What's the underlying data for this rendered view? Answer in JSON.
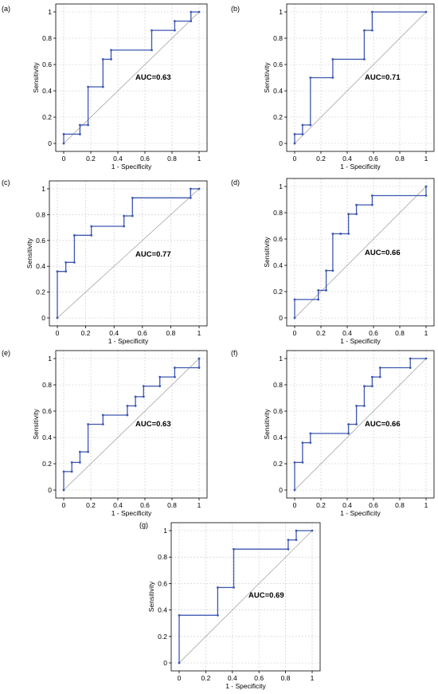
{
  "chart_data": [
    {
      "id": "a",
      "type": "line",
      "panel_label": "(a)",
      "xlabel": "1 - Specificity",
      "ylabel": "Sensitivity",
      "xlim": [
        0,
        1
      ],
      "ylim": [
        0,
        1
      ],
      "xticks": [
        "0",
        "0.2",
        "0.4",
        "0.6",
        "0.8",
        "1"
      ],
      "yticks": [
        "0",
        "0.2",
        "0.4",
        "0.6",
        "0.8",
        "1"
      ],
      "annotation": "AUC=0.63",
      "grid": true,
      "x": [
        0,
        0,
        0.12,
        0.12,
        0.18,
        0.18,
        0.29,
        0.29,
        0.35,
        0.35,
        0.65,
        0.65,
        0.82,
        0.82,
        0.94,
        0.94,
        1
      ],
      "y": [
        0,
        0.07,
        0.07,
        0.14,
        0.14,
        0.43,
        0.43,
        0.64,
        0.64,
        0.71,
        0.71,
        0.86,
        0.86,
        0.93,
        0.93,
        1,
        1
      ]
    },
    {
      "id": "b",
      "type": "line",
      "panel_label": "(b)",
      "xlabel": "1 - Specificity",
      "ylabel": "Sensitivity",
      "xlim": [
        0,
        1
      ],
      "ylim": [
        0,
        1
      ],
      "xticks": [
        "0",
        "0.2",
        "0.4",
        "0.6",
        "0.8",
        "1"
      ],
      "yticks": [
        "0",
        "0.2",
        "0.4",
        "0.6",
        "0.8",
        "1"
      ],
      "annotation": "AUC=0.71",
      "grid": true,
      "x": [
        0,
        0,
        0.06,
        0.06,
        0.12,
        0.12,
        0.29,
        0.29,
        0.53,
        0.53,
        0.59,
        0.59,
        1
      ],
      "y": [
        0,
        0.07,
        0.07,
        0.14,
        0.14,
        0.5,
        0.5,
        0.64,
        0.64,
        0.86,
        0.86,
        1,
        1
      ]
    },
    {
      "id": "c",
      "type": "line",
      "panel_label": "(c)",
      "xlabel": "1 - Specificity",
      "ylabel": "Sensitivity",
      "xlim": [
        0,
        1
      ],
      "ylim": [
        0,
        1
      ],
      "xticks": [
        "0",
        "0.2",
        "0.4",
        "0.6",
        "0.8",
        "1"
      ],
      "yticks": [
        "0",
        "0.2",
        "0.4",
        "0.6",
        "0.8",
        "1"
      ],
      "annotation": "AUC=0.77",
      "grid": true,
      "x": [
        0,
        0,
        0.06,
        0.06,
        0.12,
        0.12,
        0.24,
        0.24,
        0.47,
        0.47,
        0.53,
        0.53,
        0.94,
        0.94,
        1
      ],
      "y": [
        0,
        0.36,
        0.36,
        0.43,
        0.43,
        0.64,
        0.64,
        0.71,
        0.71,
        0.79,
        0.79,
        0.93,
        0.93,
        1,
        1
      ]
    },
    {
      "id": "d",
      "type": "line",
      "panel_label": "(d)",
      "xlabel": "1 - Specificity",
      "ylabel": "Sensitivity",
      "xlim": [
        0,
        1
      ],
      "ylim": [
        0,
        1
      ],
      "xticks": [
        "0",
        "0.2",
        "0.4",
        "0.6",
        "0.8",
        "1"
      ],
      "yticks": [
        "0",
        "0.2",
        "0.4",
        "0.6",
        "0.8",
        "1"
      ],
      "annotation": "AUC=0.66",
      "grid": true,
      "x": [
        0,
        0,
        0.18,
        0.18,
        0.24,
        0.24,
        0.29,
        0.29,
        0.35,
        0.35,
        0.41,
        0.41,
        0.47,
        0.47,
        0.59,
        0.59,
        1,
        1
      ],
      "y": [
        0,
        0.14,
        0.14,
        0.21,
        0.21,
        0.36,
        0.36,
        0.64,
        0.64,
        0.64,
        0.64,
        0.79,
        0.79,
        0.86,
        0.86,
        0.93,
        0.93,
        1
      ]
    },
    {
      "id": "e",
      "type": "line",
      "panel_label": "(e)",
      "xlabel": "1 - Specificity",
      "ylabel": "Sensitivity",
      "xlim": [
        0,
        1
      ],
      "ylim": [
        0,
        1
      ],
      "xticks": [
        "0",
        "0.2",
        "0.4",
        "0.6",
        "0.8",
        "1"
      ],
      "yticks": [
        "0",
        "0.2",
        "0.4",
        "0.6",
        "0.8",
        "1"
      ],
      "annotation": "AUC=0.63",
      "grid": true,
      "x": [
        0,
        0,
        0.06,
        0.06,
        0.12,
        0.12,
        0.18,
        0.18,
        0.29,
        0.29,
        0.47,
        0.47,
        0.53,
        0.53,
        0.59,
        0.59,
        0.71,
        0.71,
        0.82,
        0.82,
        1,
        1
      ],
      "y": [
        0,
        0.14,
        0.14,
        0.21,
        0.21,
        0.29,
        0.29,
        0.5,
        0.5,
        0.57,
        0.57,
        0.64,
        0.64,
        0.71,
        0.71,
        0.79,
        0.79,
        0.86,
        0.86,
        0.93,
        0.93,
        1
      ]
    },
    {
      "id": "f",
      "type": "line",
      "panel_label": "(f)",
      "xlabel": "1 - Specificity",
      "ylabel": "Sensitivity",
      "xlim": [
        0,
        1
      ],
      "ylim": [
        0,
        1
      ],
      "xticks": [
        "0",
        "0.2",
        "0.4",
        "0.6",
        "0.8",
        "1"
      ],
      "yticks": [
        "0",
        "0.2",
        "0.4",
        "0.6",
        "0.8",
        "1"
      ],
      "annotation": "AUC=0.66",
      "grid": true,
      "x": [
        0,
        0,
        0.06,
        0.06,
        0.12,
        0.12,
        0.41,
        0.41,
        0.47,
        0.47,
        0.53,
        0.53,
        0.59,
        0.59,
        0.65,
        0.65,
        0.88,
        0.88,
        1
      ],
      "y": [
        0,
        0.21,
        0.21,
        0.36,
        0.36,
        0.43,
        0.43,
        0.5,
        0.5,
        0.64,
        0.64,
        0.79,
        0.79,
        0.86,
        0.86,
        0.93,
        0.93,
        1,
        1
      ]
    },
    {
      "id": "g",
      "type": "line",
      "panel_label": "(g)",
      "xlabel": "1 - Specificity",
      "ylabel": "Sensitivity",
      "xlim": [
        0,
        1
      ],
      "ylim": [
        0,
        1
      ],
      "xticks": [
        "0",
        "0.2",
        "0.4",
        "0.6",
        "0.8",
        "1"
      ],
      "yticks": [
        "0",
        "0.2",
        "0.4",
        "0.6",
        "0.8",
        "1"
      ],
      "annotation": "AUC=0.69",
      "grid": true,
      "x": [
        0,
        0,
        0.29,
        0.29,
        0.41,
        0.41,
        0.82,
        0.82,
        0.88,
        0.88,
        1
      ],
      "y": [
        0,
        0.36,
        0.36,
        0.57,
        0.57,
        0.86,
        0.86,
        0.93,
        0.93,
        1,
        1
      ]
    }
  ]
}
